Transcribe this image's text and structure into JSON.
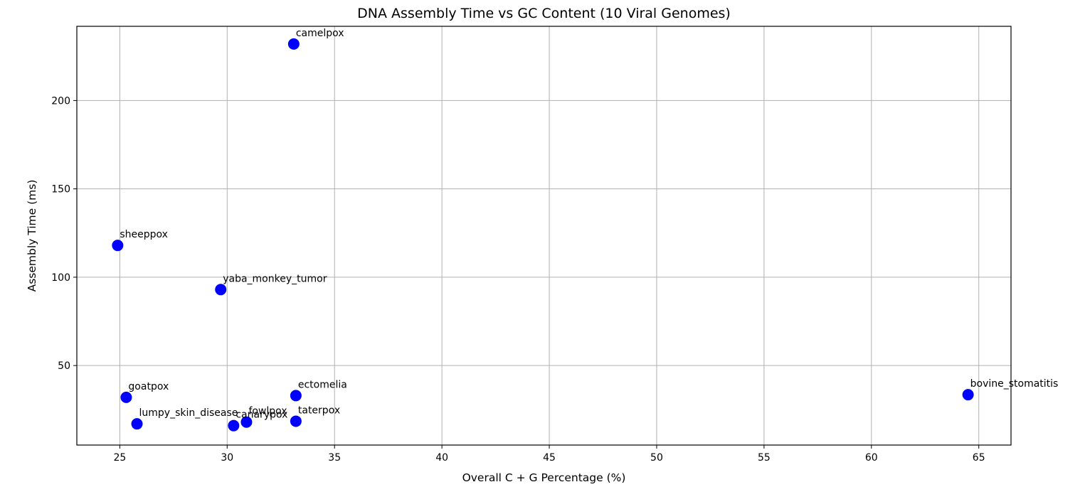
{
  "chart_data": {
    "type": "scatter",
    "title": "DNA Assembly Time vs GC Content (10 Viral Genomes)",
    "xlabel": "Overall C + G Percentage (%)",
    "ylabel": "Assembly Time (ms)",
    "xlim": [
      23,
      66.5
    ],
    "ylim": [
      5,
      242
    ],
    "xticks": [
      25,
      30,
      35,
      40,
      45,
      50,
      55,
      60,
      65
    ],
    "yticks": [
      50,
      100,
      150,
      200
    ],
    "grid": true,
    "marker_color": "#0000ff",
    "points": [
      {
        "label": "camelpox",
        "x": 33.1,
        "y": 232
      },
      {
        "label": "sheeppox",
        "x": 24.9,
        "y": 118
      },
      {
        "label": "yaba_monkey_tumor",
        "x": 29.7,
        "y": 93
      },
      {
        "label": "goatpox",
        "x": 25.3,
        "y": 32
      },
      {
        "label": "lumpy_skin_disease",
        "x": 25.8,
        "y": 17
      },
      {
        "label": "canarypox",
        "x": 30.3,
        "y": 16
      },
      {
        "label": "fowlpox",
        "x": 30.9,
        "y": 18
      },
      {
        "label": "ectomelia",
        "x": 33.2,
        "y": 33
      },
      {
        "label": "taterpox",
        "x": 33.2,
        "y": 18.5
      },
      {
        "label": "bovine_stomatitis",
        "x": 64.5,
        "y": 33.5
      }
    ]
  }
}
